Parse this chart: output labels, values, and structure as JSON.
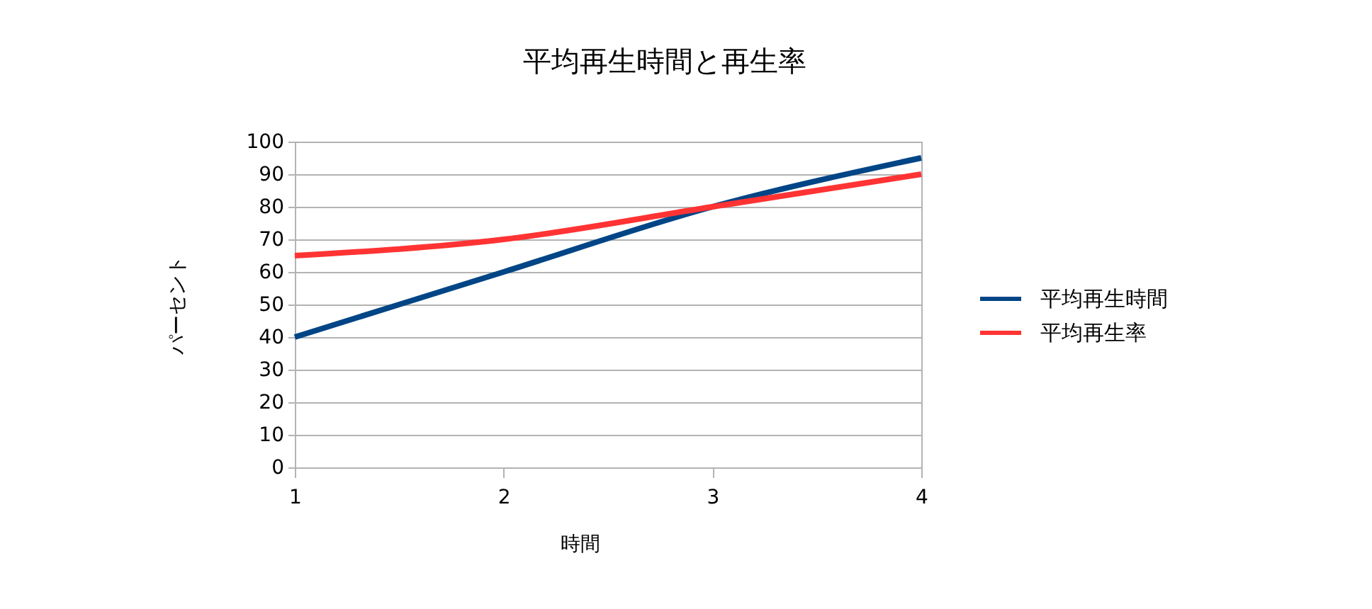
{
  "chart_data": {
    "type": "line",
    "title": "平均再生時間と再生率",
    "xlabel": "時間",
    "ylabel": "パーセント",
    "x": [
      1,
      2,
      3,
      4
    ],
    "xlim": [
      1,
      4
    ],
    "xticks": [
      1,
      2,
      3,
      4
    ],
    "ylim": [
      0,
      100
    ],
    "yticks": [
      0,
      10,
      20,
      30,
      40,
      50,
      60,
      70,
      80,
      90,
      100
    ],
    "series": [
      {
        "name": "平均再生時間",
        "color": "#004586",
        "values": [
          40,
          60,
          80,
          95
        ]
      },
      {
        "name": "平均再生率",
        "color": "#ff3333",
        "values": [
          65,
          70,
          80,
          90
        ]
      }
    ],
    "grid": "y",
    "legend": "right"
  }
}
